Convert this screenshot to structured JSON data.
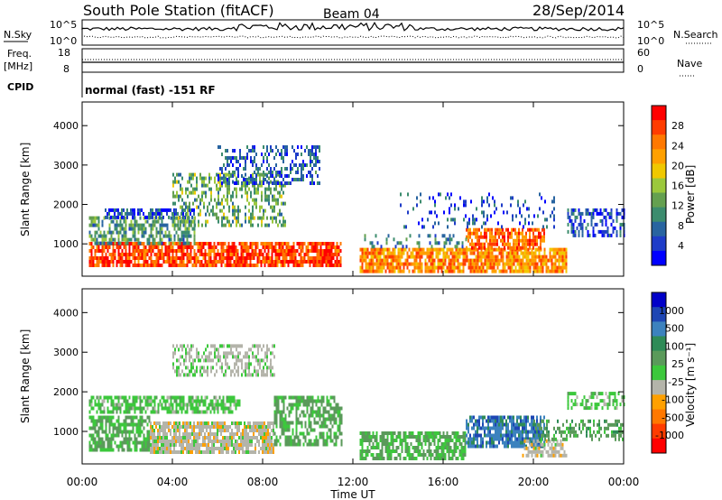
{
  "header": {
    "station": "South Pole Station (fitACF)",
    "beam": "Beam 04",
    "date": "28/Sep/2014"
  },
  "status_panels": {
    "nsky_label": "N.Sky",
    "nsky_top": "10^5",
    "nsky_bottom": "10^0",
    "nsearch_label": "N.Search",
    "nsearch_top": "10^5",
    "nsearch_bottom": "10^0",
    "freq_label_1": "Freq.",
    "freq_label_2": "[MHz]",
    "freq_top": "18",
    "freq_bottom": "8",
    "nave_label": "Nave",
    "nave_top": "60",
    "nave_bottom": "0",
    "cpid_label": "CPID",
    "cpid_value": "normal (fast) -151 RF"
  },
  "chart_data": [
    {
      "type": "heatmap",
      "name": "power",
      "ylabel": "Slant Range [km]",
      "xlabel": "",
      "yticks": [
        1000,
        2000,
        3000,
        4000
      ],
      "ylim": [
        180,
        4600
      ],
      "xlim_hours": [
        0,
        24
      ],
      "colorbar_label": "Power [dB]",
      "colorbar_ticks": [
        "28",
        "24",
        "20",
        "16",
        "12",
        "8",
        "4"
      ],
      "colorbar_colors": [
        "#ff0000",
        "#ff3c00",
        "#ff7800",
        "#ffa000",
        "#f0c800",
        "#9bc83c",
        "#64a050",
        "#3c8c6e",
        "#2864a0",
        "#1e3cc8",
        "#0000ff"
      ],
      "regions": [
        {
          "t0": 0.3,
          "t1": 11.5,
          "r0": 500,
          "r1": 1050,
          "v": 26,
          "d": 0.8
        },
        {
          "t0": 0.3,
          "t1": 5.0,
          "r0": 1050,
          "r1": 1700,
          "v": 10,
          "d": 0.6
        },
        {
          "t0": 1.0,
          "t1": 5.0,
          "r0": 1700,
          "r1": 1900,
          "v": 5,
          "d": 0.6
        },
        {
          "t0": 4.0,
          "t1": 9.0,
          "r0": 1500,
          "r1": 2800,
          "v": 12,
          "d": 0.4
        },
        {
          "t0": 6.0,
          "t1": 10.5,
          "r0": 2500,
          "r1": 3500,
          "v": 6,
          "d": 0.4
        },
        {
          "t0": 12.3,
          "t1": 21.5,
          "r0": 350,
          "r1": 900,
          "v": 22,
          "d": 0.8
        },
        {
          "t0": 17.0,
          "t1": 20.5,
          "r0": 900,
          "r1": 1400,
          "v": 24,
          "d": 0.7
        },
        {
          "t0": 12.5,
          "t1": 17.0,
          "r0": 900,
          "r1": 1250,
          "v": 8,
          "d": 0.3
        },
        {
          "t0": 21.5,
          "t1": 24.0,
          "r0": 1200,
          "r1": 1900,
          "v": 5,
          "d": 0.5
        },
        {
          "t0": 14.0,
          "t1": 21.0,
          "r0": 1400,
          "r1": 2300,
          "v": 5,
          "d": 0.15
        }
      ]
    },
    {
      "type": "heatmap",
      "name": "velocity",
      "ylabel": "Slant Range [km]",
      "xlabel": "Time UT",
      "xticks": [
        "00:00",
        "04:00",
        "08:00",
        "12:00",
        "16:00",
        "20:00",
        "00:00"
      ],
      "yticks": [
        1000,
        2000,
        3000,
        4000
      ],
      "ylim": [
        180,
        4600
      ],
      "xlim_hours": [
        0,
        24
      ],
      "colorbar_label": "Velocity [m s⁻¹]",
      "colorbar_ticks": [
        "1000",
        "500",
        "100",
        "25",
        "-25",
        "-100",
        "-500",
        "-1000"
      ],
      "colorbar_colors": [
        "#0000c8",
        "#1e46b4",
        "#3c82be",
        "#2e8b57",
        "#5a9a5a",
        "#3cc83c",
        "#b4b4aa",
        "#ffa000",
        "#ff7800",
        "#ff3c00",
        "#ff0000"
      ],
      "regions": [
        {
          "t0": 0.3,
          "t1": 3.0,
          "r0": 500,
          "r1": 1400,
          "v": 120,
          "d": 0.7
        },
        {
          "t0": 3.0,
          "t1": 8.5,
          "r0": 450,
          "r1": 1250,
          "v": -200,
          "d": 0.8
        },
        {
          "t0": 0.3,
          "t1": 7.0,
          "r0": 1500,
          "r1": 1900,
          "v": 0,
          "d": 0.7
        },
        {
          "t0": 4.0,
          "t1": 8.5,
          "r0": 2400,
          "r1": 3200,
          "v": -150,
          "d": 0.5
        },
        {
          "t0": 8.5,
          "t1": 11.5,
          "r0": 700,
          "r1": 1900,
          "v": 150,
          "d": 0.6
        },
        {
          "t0": 12.3,
          "t1": 17.0,
          "r0": 350,
          "r1": 1000,
          "v": 120,
          "d": 0.7
        },
        {
          "t0": 17.0,
          "t1": 20.5,
          "r0": 600,
          "r1": 1400,
          "v": 600,
          "d": 0.8
        },
        {
          "t0": 19.5,
          "t1": 21.5,
          "r0": 350,
          "r1": 800,
          "v": -200,
          "d": 0.6
        },
        {
          "t0": 21.5,
          "t1": 24.0,
          "r0": 1600,
          "r1": 2000,
          "v": 0,
          "d": 0.5
        },
        {
          "t0": 20.0,
          "t1": 24.0,
          "r0": 800,
          "r1": 1300,
          "v": 200,
          "d": 0.4
        }
      ]
    }
  ]
}
